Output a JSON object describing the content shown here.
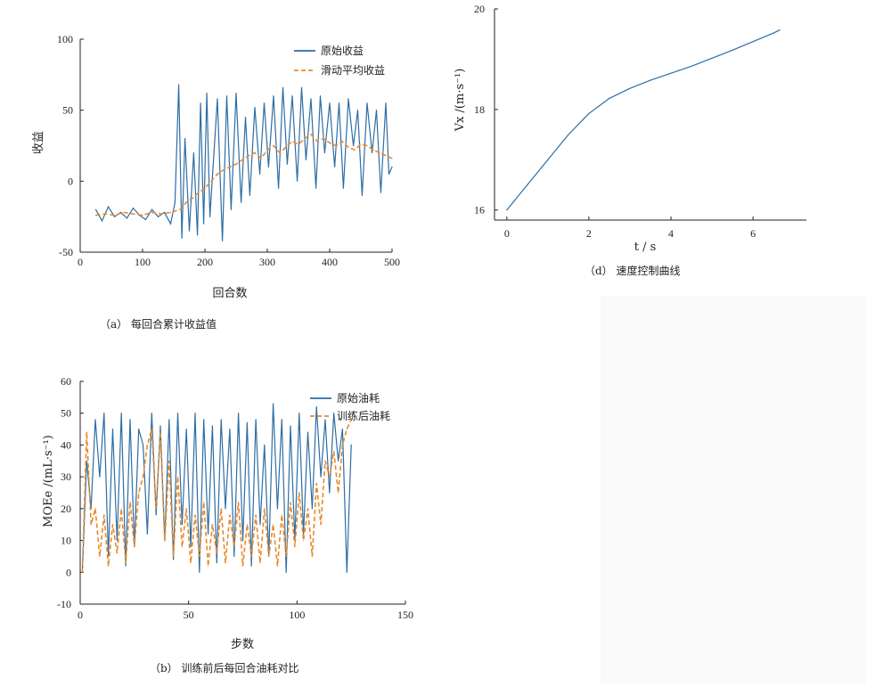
{
  "colors": {
    "blue": "#2e6da4",
    "orange": "#e8892b"
  },
  "chart_data": [
    {
      "type": "line",
      "ylabel": "收益",
      "xlabel": "回合数",
      "caption": "（a） 每回合累计收益值",
      "xlim": [
        0,
        500
      ],
      "ylim": [
        -50,
        100
      ],
      "x_ticks": [
        "0",
        "100",
        "200",
        "300",
        "400",
        "500"
      ],
      "y_ticks": [
        "-50",
        "0",
        "50",
        "100"
      ],
      "legend": "top-right",
      "series": [
        {
          "name": "原始收益",
          "style": "solid",
          "color": "#2e6da4",
          "x": [
            25,
            35,
            45,
            55,
            65,
            75,
            85,
            95,
            105,
            115,
            125,
            135,
            145,
            152,
            158,
            163,
            168,
            175,
            182,
            188,
            193,
            198,
            203,
            208,
            213,
            220,
            228,
            235,
            242,
            250,
            258,
            265,
            272,
            280,
            288,
            295,
            302,
            310,
            318,
            325,
            332,
            340,
            348,
            355,
            362,
            370,
            378,
            385,
            392,
            400,
            408,
            415,
            422,
            430,
            438,
            445,
            452,
            460,
            468,
            475,
            482,
            490,
            495,
            500
          ],
          "y": [
            -20,
            -28,
            -18,
            -25,
            -22,
            -26,
            -19,
            -24,
            -27,
            -20,
            -25,
            -22,
            -30,
            -15,
            68,
            -40,
            30,
            -35,
            20,
            -38,
            55,
            -30,
            62,
            -25,
            10,
            58,
            -42,
            60,
            -20,
            62,
            -15,
            45,
            -10,
            52,
            5,
            55,
            10,
            60,
            -5,
            66,
            12,
            60,
            0,
            66,
            15,
            58,
            -5,
            60,
            20,
            55,
            10,
            55,
            -5,
            58,
            25,
            50,
            -10,
            55,
            20,
            50,
            -8,
            55,
            5,
            10
          ]
        },
        {
          "name": "滑动平均收益",
          "style": "dashed",
          "color": "#e8892b",
          "x": [
            25,
            40,
            55,
            70,
            85,
            100,
            115,
            130,
            145,
            160,
            170,
            180,
            190,
            200,
            210,
            220,
            230,
            240,
            250,
            260,
            270,
            280,
            290,
            300,
            310,
            320,
            330,
            340,
            350,
            360,
            370,
            380,
            390,
            400,
            410,
            420,
            430,
            440,
            450,
            460,
            470,
            480,
            490,
            500
          ],
          "y": [
            -24,
            -23,
            -24,
            -22,
            -23,
            -24,
            -22,
            -23,
            -22,
            -20,
            -15,
            -12,
            -8,
            -5,
            0,
            5,
            8,
            10,
            12,
            15,
            18,
            20,
            16,
            22,
            25,
            20,
            24,
            28,
            26,
            30,
            33,
            28,
            30,
            27,
            25,
            28,
            24,
            22,
            26,
            25,
            22,
            20,
            18,
            16
          ]
        }
      ]
    },
    {
      "type": "line",
      "ylabel": "MOEe /(mL·s⁻¹)",
      "xlabel": "步数",
      "caption": "（b） 训练前后每回合油耗对比",
      "xlim": [
        0,
        150
      ],
      "ylim": [
        -10,
        60
      ],
      "x_ticks": [
        "0",
        "50",
        "100",
        "150"
      ],
      "y_ticks": [
        "-10",
        "0",
        "10",
        "20",
        "30",
        "40",
        "50",
        "60"
      ],
      "legend": "top-right",
      "series": [
        {
          "name": "原始油耗",
          "style": "solid",
          "color": "#2e6da4",
          "x": [
            1,
            3,
            5,
            7,
            9,
            11,
            13,
            15,
            17,
            19,
            21,
            23,
            25,
            27,
            29,
            31,
            33,
            35,
            37,
            39,
            41,
            43,
            45,
            47,
            49,
            51,
            53,
            55,
            57,
            59,
            61,
            63,
            65,
            67,
            69,
            71,
            73,
            75,
            77,
            79,
            81,
            83,
            85,
            87,
            89,
            91,
            93,
            95,
            97,
            99,
            101,
            103,
            105,
            107,
            109,
            111,
            113,
            115,
            117,
            119,
            121,
            123,
            125
          ],
          "y": [
            0,
            35,
            20,
            48,
            30,
            50,
            5,
            45,
            10,
            50,
            2,
            48,
            8,
            45,
            40,
            12,
            50,
            18,
            46,
            10,
            48,
            4,
            50,
            15,
            45,
            8,
            50,
            0,
            48,
            12,
            46,
            3,
            48,
            20,
            45,
            5,
            50,
            10,
            47,
            2,
            48,
            15,
            40,
            5,
            53,
            20,
            48,
            0,
            46,
            10,
            50,
            12,
            44,
            20,
            52,
            30,
            48,
            25,
            50,
            35,
            45,
            0,
            40
          ]
        },
        {
          "name": "训练后油耗",
          "style": "dashed",
          "color": "#e8892b",
          "x": [
            1,
            3,
            5,
            7,
            9,
            11,
            13,
            15,
            17,
            19,
            21,
            23,
            25,
            27,
            29,
            31,
            33,
            35,
            37,
            39,
            41,
            43,
            45,
            47,
            49,
            51,
            53,
            55,
            57,
            59,
            61,
            63,
            65,
            67,
            69,
            71,
            73,
            75,
            77,
            79,
            81,
            83,
            85,
            87,
            89,
            91,
            93,
            95,
            97,
            99,
            101,
            103,
            105,
            107,
            109,
            111,
            113,
            115,
            117,
            119,
            121,
            123,
            125
          ],
          "y": [
            0,
            44,
            15,
            20,
            5,
            18,
            2,
            15,
            6,
            20,
            3,
            22,
            8,
            25,
            30,
            40,
            45,
            20,
            44,
            10,
            35,
            5,
            30,
            8,
            20,
            3,
            18,
            5,
            22,
            2,
            15,
            6,
            20,
            3,
            18,
            8,
            22,
            2,
            15,
            5,
            18,
            3,
            20,
            5,
            15,
            2,
            18,
            5,
            22,
            8,
            25,
            10,
            20,
            5,
            28,
            15,
            35,
            30,
            38,
            25,
            40,
            45,
            48
          ]
        }
      ]
    },
    {
      "type": "line",
      "ylabel": "Vx /(m·s⁻¹)",
      "xlabel": "t / s",
      "caption": "（d） 速度控制曲线",
      "xlim": [
        -0.3,
        7.3
      ],
      "ylim": [
        15.8,
        20
      ],
      "x_ticks": [
        "0",
        "2",
        "4",
        "6"
      ],
      "y_ticks": [
        "16",
        "18",
        "20"
      ],
      "series": [
        {
          "name": "",
          "style": "solid",
          "color": "#2e6da4",
          "x": [
            0,
            0.5,
            1.0,
            1.5,
            2.0,
            2.5,
            3.0,
            3.5,
            4.0,
            4.5,
            5.0,
            5.5,
            6.0,
            6.5,
            6.65
          ],
          "y": [
            16.0,
            16.5,
            17.0,
            17.5,
            17.92,
            18.22,
            18.42,
            18.58,
            18.72,
            18.86,
            19.02,
            19.18,
            19.35,
            19.52,
            19.58
          ]
        }
      ]
    }
  ]
}
